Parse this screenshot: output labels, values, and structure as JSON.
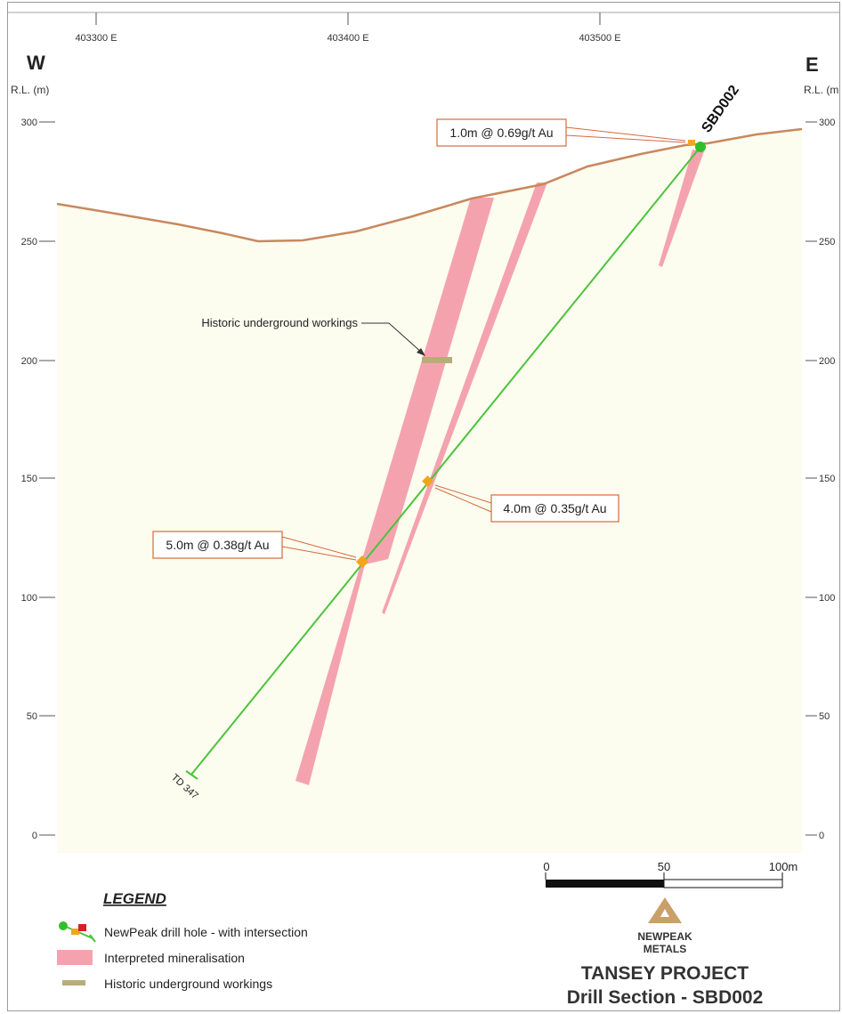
{
  "easting_labels": [
    "403300 E",
    "403400 E",
    "403500 E"
  ],
  "side_left": "W",
  "side_right": "E",
  "rl_left": "R.L. (m)",
  "rl_right": "R.L. (m",
  "rl_ticks_left": [
    "300",
    "250",
    "200",
    "150",
    "100",
    "50",
    "0"
  ],
  "rl_ticks_right": [
    "300",
    "250",
    "200",
    "150",
    "100",
    "50",
    "0"
  ],
  "drill_hole_name": "SBD002",
  "td_label": "TD 347",
  "historic_callout": "Historic underground workings",
  "intersections": [
    {
      "label": "1.0m @ 0.69g/t Au"
    },
    {
      "label": "4.0m @ 0.35g/t Au"
    },
    {
      "label": "5.0m @ 0.38g/t Au"
    }
  ],
  "scale": {
    "ticks": [
      "0",
      "50",
      "100m"
    ]
  },
  "legend": {
    "title": "LEGEND",
    "items": [
      {
        "label": "NewPeak drill hole - with intersection"
      },
      {
        "label": "Interpreted mineralisation"
      },
      {
        "label": "Historic underground workings"
      }
    ]
  },
  "logo": {
    "line1": "NEWPEAK",
    "line2": "METALS"
  },
  "project_title": "TANSEY PROJECT",
  "section_title": "Drill Section - SBD002",
  "colors": {
    "ground": "#fcfcef",
    "surface": "#c8885e",
    "mineralisation": "#f4a3ae",
    "drill_hole": "#4cc33a",
    "intersection": "#f2a51b",
    "workings": "#b7ad7a",
    "callout_border": "#d46a3c",
    "logo": "#c9a06a"
  }
}
